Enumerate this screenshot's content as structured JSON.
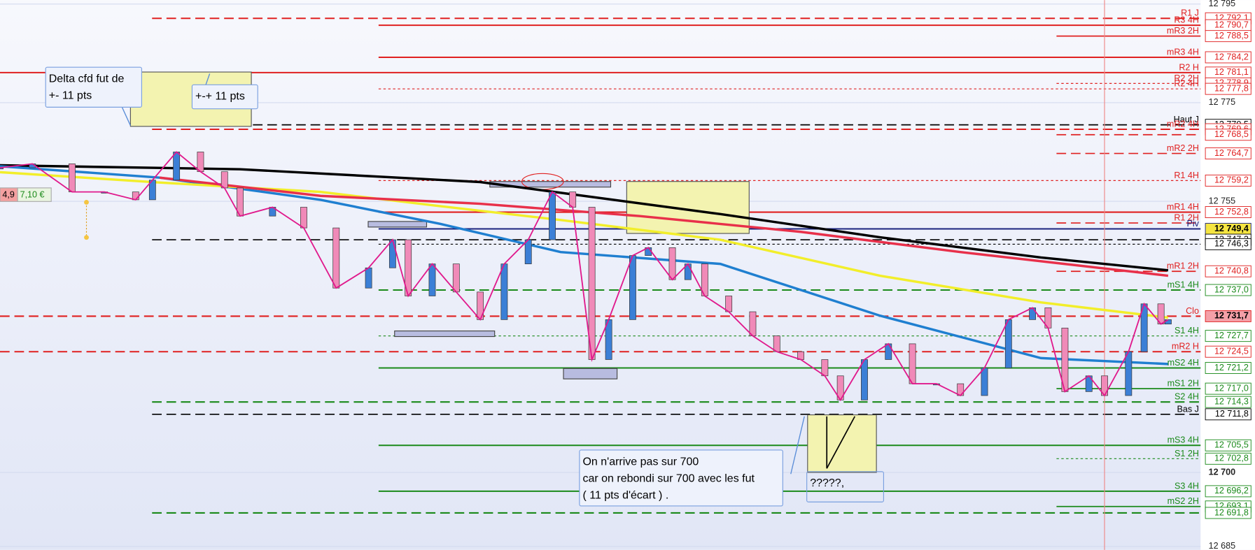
{
  "chart_data": {
    "type": "candlestick",
    "ylim": [
      12684.3,
      12795.8
    ],
    "yticks": [
      {
        "value": 12795,
        "label": "12 795"
      },
      {
        "value": 12775,
        "label": "12 775"
      },
      {
        "value": 12755,
        "label": "12 755"
      },
      {
        "value": 12700,
        "label": "12 700"
      },
      {
        "value": 12685,
        "label": "12 685"
      }
    ],
    "xlim": [
      0,
      100
    ],
    "x": [
      0,
      2.7,
      6,
      8.7,
      11.3,
      12.7,
      14.7,
      16.7,
      18.7,
      20,
      22.7,
      25.3,
      28,
      30.7,
      32.7,
      34,
      36,
      38,
      40,
      42,
      44,
      46,
      47.7,
      49.3,
      50.7,
      52.7,
      54,
      56,
      57.3,
      58.7,
      60.7,
      62.7,
      64.7,
      66.7,
      68.7,
      70,
      72,
      74,
      76,
      78,
      80,
      82,
      84,
      86,
      87.3,
      88.7,
      90.7,
      92,
      94,
      95.3,
      96.7,
      97.3
    ],
    "close": [
      12761.8,
      12762.6,
      12756.9,
      12756.9,
      12755.3,
      12759.3,
      12765.0,
      12761.0,
      12757.7,
      12752.0,
      12753.8,
      12749.6,
      12737.4,
      12741.5,
      12747.2,
      12735.8,
      12742.3,
      12736.6,
      12731.0,
      12742.3,
      12747.2,
      12756.9,
      12753.8,
      12722.9,
      12731.0,
      12744.0,
      12745.6,
      12739.1,
      12742.3,
      12735.8,
      12732.6,
      12727.7,
      12724.5,
      12722.9,
      12719.6,
      12714.7,
      12722.9,
      12726.1,
      12718.0,
      12718.0,
      12715.6,
      12721.2,
      12731.0,
      12733.4,
      12729.3,
      12716.4,
      12719.6,
      12715.6,
      12724.5,
      12734.2,
      12730.1,
      12731.0
    ],
    "close_color": "#e0198c",
    "series": [
      {
        "color": "#000000",
        "x": [
          0,
          20,
          40,
          60,
          73.3,
          86.7,
          97.3
        ],
        "values": [
          12762.3,
          12761.5,
          12758.9,
          12752.4,
          12747.7,
          12743.6,
          12741.0
        ]
      },
      {
        "color": "#1f7fd0",
        "x": [
          0,
          13.3,
          26.7,
          36.7,
          46.7,
          60,
          73.3,
          86.7,
          97.3
        ],
        "values": [
          12762.1,
          12759.8,
          12755.3,
          12750.4,
          12744.7,
          12742.3,
          12731.8,
          12723.2,
          12722.0
        ]
      },
      {
        "color": "#f2ee2a",
        "x": [
          0,
          13.3,
          26.7,
          36.7,
          46.7,
          60,
          73.3,
          86.7,
          97.3
        ],
        "values": [
          12760.9,
          12758.8,
          12756.9,
          12754.0,
          12751.2,
          12747.2,
          12739.9,
          12734.5,
          12731.4
        ]
      },
      {
        "color": "#e8304a",
        "x": [
          13.3,
          26.7,
          40,
          53.3,
          66.7,
          80,
          97.3
        ],
        "values": [
          12759.8,
          12756.1,
          12754.5,
          12752.0,
          12748.8,
          12744.7,
          12739.9
        ]
      }
    ],
    "levels": [
      {
        "name": "R1 J",
        "value": 12792.1,
        "value_label": "12 792,1",
        "color": "#e02020",
        "style": "dashed"
      },
      {
        "name": "R3 4H",
        "value": 12790.7,
        "value_label": "12 790,7",
        "color": "#e02020",
        "style": "solid"
      },
      {
        "name": "mR3 2H",
        "value": 12788.5,
        "value_label": "12 788,5",
        "color": "#e02020",
        "style": "solid"
      },
      {
        "name": "mR3 4H",
        "value": 12784.2,
        "value_label": "12 784,2",
        "color": "#e02020",
        "style": "solid"
      },
      {
        "name": "R2 H",
        "value": 12781.1,
        "value_label": "12 781,1",
        "color": "#e02020",
        "style": "solid"
      },
      {
        "name": "R2 2H",
        "value": 12778.9,
        "value_label": "12 778,9",
        "color": "#e02020",
        "style": "dotted"
      },
      {
        "name": "R2 4H",
        "value": 12777.8,
        "value_label": "12 777,8",
        "color": "#e02020",
        "style": "dotted"
      },
      {
        "name": "Haut J",
        "value": 12770.5,
        "value_label": "12 770,5",
        "color": "#000000",
        "style": "dashed"
      },
      {
        "name": "mR2 4H",
        "value": 12769.6,
        "value_label": "12 769,6",
        "color": "#e02020",
        "style": "dashed"
      },
      {
        "value": 12768.5,
        "value_label": "12 768,5",
        "color": "#e02020",
        "style": "dashed"
      },
      {
        "name": "mR2 2H",
        "value": 12764.7,
        "value_label": "12 764,7",
        "color": "#e02020",
        "style": "dashed"
      },
      {
        "name": "R1 4H",
        "value": 12759.2,
        "value_label": "12 759,2",
        "color": "#e02020",
        "style": "dotted"
      },
      {
        "name": "mR1 4H",
        "value": 12752.8,
        "value_label": "12 752,8",
        "color": "#e02020",
        "style": "solid"
      },
      {
        "name": "R1 2H",
        "value": 12750.6,
        "color": "#e02020",
        "style": "dashed"
      },
      {
        "name": "Piv",
        "value": 12749.4,
        "value_label": "12 749,4",
        "color": "#1a237e",
        "style": "solid",
        "highlight": "#f5e542"
      },
      {
        "value": 12747.2,
        "value_label": "12 747,2",
        "color": "#000000",
        "style": "dashed"
      },
      {
        "value": 12746.3,
        "value_label": "12 746,3",
        "color": "#000000",
        "style": "dotted"
      },
      {
        "name": "mR1 2H",
        "value": 12740.8,
        "value_label": "12 740,8",
        "color": "#e02020",
        "style": "dashed"
      },
      {
        "name": "mS1 4H",
        "value": 12737.0,
        "value_label": "12 737,0",
        "color": "#1a8a1a",
        "style": "dashed"
      },
      {
        "name": "Clo",
        "value": 12731.7,
        "value_label": "12 731,7",
        "color": "#e02020",
        "style": "dashed",
        "highlight": "#f4a0a8"
      },
      {
        "name": "S1 4H",
        "value": 12727.7,
        "value_label": "12 727,7",
        "color": "#1a8a1a",
        "style": "dotted"
      },
      {
        "name": "mR2 H",
        "value": 12724.5,
        "value_label": "12 724,5",
        "color": "#e02020",
        "style": "dashed"
      },
      {
        "name": "mS2 4H",
        "value": 12721.2,
        "value_label": "12 721,2",
        "color": "#1a8a1a",
        "style": "solid"
      },
      {
        "name": "mS1 2H",
        "value": 12717.0,
        "value_label": "12 717,0",
        "color": "#1a8a1a",
        "style": "solid"
      },
      {
        "name": "S2 4H",
        "value": 12714.3,
        "value_label": "12 714,3",
        "color": "#1a8a1a",
        "style": "dashed"
      },
      {
        "name": "Bas J",
        "value": 12711.8,
        "value_label": "12 711,8",
        "color": "#000000",
        "style": "dashed"
      },
      {
        "name": "mS3 4H",
        "value": 12705.5,
        "value_label": "12 705,5",
        "color": "#1a8a1a",
        "style": "solid"
      },
      {
        "name": "S1 2H",
        "value": 12702.8,
        "value_label": "12 702,8",
        "color": "#1a8a1a",
        "style": "dotted"
      },
      {
        "name": "S3 4H",
        "value": 12696.2,
        "value_label": "12 696,2",
        "color": "#1a8a1a",
        "style": "solid"
      },
      {
        "name": "mS2 2H",
        "value": 12693.1,
        "value_label": "12 693,1",
        "color": "#1a8a1a",
        "style": "solid"
      },
      {
        "value": 12691.8,
        "value_label": "12 691,8",
        "color": "#1a8a1a",
        "style": "dashed"
      }
    ],
    "annotations": [
      {
        "lines": [
          "Delta cfd fut de",
          "+- 11 pts"
        ]
      },
      {
        "lines": [
          "+-+ 11 pts"
        ]
      },
      {
        "lines": [
          "On n'arrive pas  sur 700",
          " car on rebondi sur 700 avec les fut",
          "( 11 pts d'écart ) ."
        ]
      },
      {
        "lines": [
          "?????,"
        ]
      }
    ],
    "badges": [
      "4,9",
      "7,10 €"
    ]
  }
}
